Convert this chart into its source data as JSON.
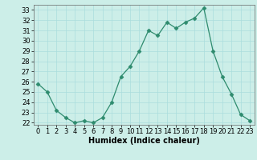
{
  "x": [
    0,
    1,
    2,
    3,
    4,
    5,
    6,
    7,
    8,
    9,
    10,
    11,
    12,
    13,
    14,
    15,
    16,
    17,
    18,
    19,
    20,
    21,
    22,
    23
  ],
  "y": [
    25.8,
    25.0,
    23.2,
    22.5,
    22.0,
    22.2,
    22.0,
    22.5,
    24.0,
    26.5,
    27.5,
    29.0,
    31.0,
    30.5,
    31.8,
    31.2,
    31.8,
    32.2,
    33.2,
    29.0,
    26.5,
    24.8,
    22.8,
    22.2
  ],
  "line_color": "#2e8b6e",
  "marker": "D",
  "marker_size": 2.5,
  "bg_color": "#cceee8",
  "grid_color": "#aadddd",
  "xlabel": "Humidex (Indice chaleur)",
  "ylim": [
    21.8,
    33.5
  ],
  "xlim": [
    -0.5,
    23.5
  ],
  "yticks": [
    22,
    23,
    24,
    25,
    26,
    27,
    28,
    29,
    30,
    31,
    32,
    33
  ],
  "xticks": [
    0,
    1,
    2,
    3,
    4,
    5,
    6,
    7,
    8,
    9,
    10,
    11,
    12,
    13,
    14,
    15,
    16,
    17,
    18,
    19,
    20,
    21,
    22,
    23
  ],
  "label_fontsize": 7.0,
  "tick_fontsize": 6.0
}
